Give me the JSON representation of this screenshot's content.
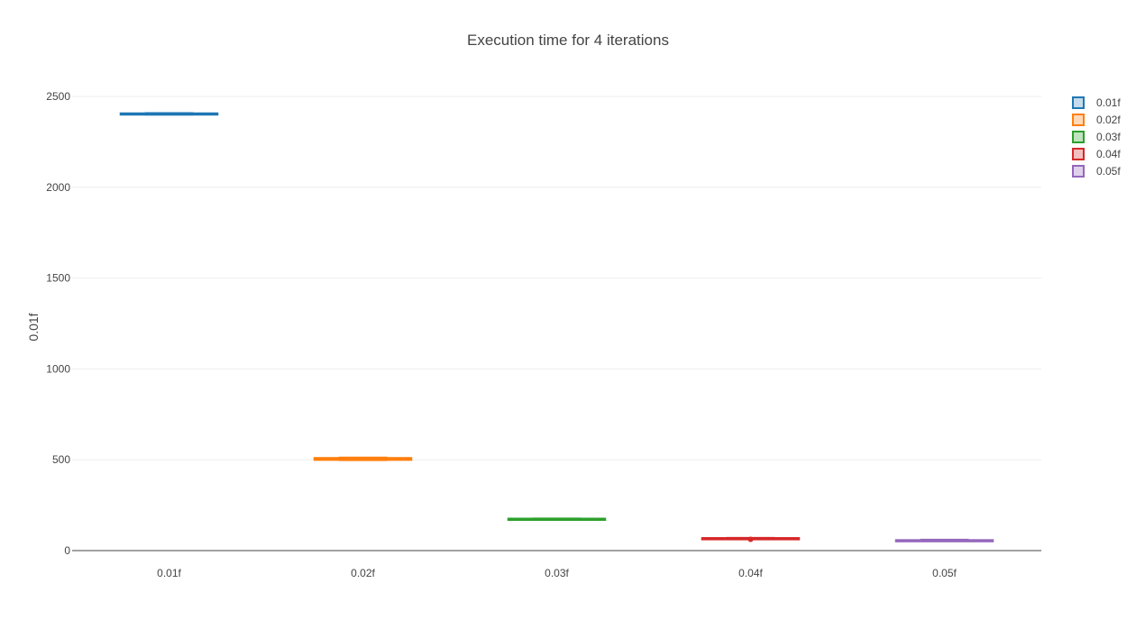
{
  "chart_data": {
    "type": "box",
    "title": "Execution time for 4 iterations",
    "xlabel": "",
    "ylabel": "0.01f",
    "categories": [
      "0.01f",
      "0.02f",
      "0.03f",
      "0.04f",
      "0.05f"
    ],
    "ylim": [
      0,
      2600
    ],
    "yticks": [
      0,
      500,
      1000,
      1500,
      2000,
      2500
    ],
    "ytick_labels": [
      "0",
      "500",
      "1000",
      "1500",
      "2000",
      "2500"
    ],
    "grid": true,
    "legend_position": "top-right",
    "series": [
      {
        "name": "0.01f",
        "color": "#1f77b4",
        "fill": "#9ec3e0",
        "min": 2400,
        "q1": 2402,
        "median": 2404,
        "q3": 2407,
        "max": 2408,
        "outliers": []
      },
      {
        "name": "0.02f",
        "color": "#ff7f0e",
        "fill": "#ffbf87",
        "min": 498,
        "q1": 499,
        "median": 501,
        "q3": 510,
        "max": 512,
        "outliers": []
      },
      {
        "name": "0.03f",
        "color": "#2ca02c",
        "fill": "#95cf95",
        "min": 173,
        "q1": 174,
        "median": 175,
        "q3": 176,
        "max": 177,
        "outliers": []
      },
      {
        "name": "0.04f",
        "color": "#d62728",
        "fill": "#ea9393",
        "min": 66,
        "q1": 67,
        "median": 68,
        "q3": 69,
        "max": 70,
        "outliers": [
          62
        ]
      },
      {
        "name": "0.05f",
        "color": "#9467bd",
        "fill": "#c9b3de",
        "min": 52,
        "q1": 54,
        "median": 55,
        "q3": 58,
        "max": 60,
        "outliers": []
      }
    ]
  }
}
